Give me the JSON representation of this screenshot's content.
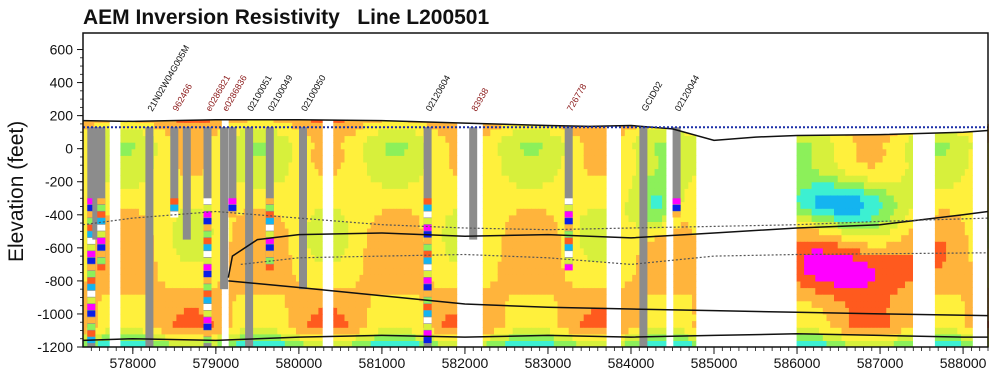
{
  "chart_data": {
    "type": "heatmap",
    "title": "AEM Inversion Resistivity   Line L200501",
    "xlabel": "",
    "ylabel": "Elevation (feet)",
    "xlim": [
      577400,
      588300
    ],
    "ylim": [
      -1200,
      700
    ],
    "x_ticks": [
      578000,
      579000,
      580000,
      581000,
      582000,
      583000,
      584000,
      585000,
      586000,
      587000,
      588000
    ],
    "x_tick_labels": [
      "578000",
      "579000",
      "580000",
      "581000",
      "582000",
      "583000",
      "584000",
      "585000",
      "586000",
      "587000",
      "588000"
    ],
    "y_ticks": [
      600,
      400,
      200,
      0,
      -200,
      -400,
      -600,
      -800,
      -1000,
      -1200
    ],
    "y_tick_labels": [
      "600",
      "400",
      "200",
      "0",
      "-200",
      "-400",
      "-600",
      "-800",
      "-1000",
      "-1200"
    ],
    "grid": false,
    "colormap": [
      "#0a1ee6",
      "#14b4f0",
      "#3cf0d2",
      "#8cf05a",
      "#d7f03c",
      "#fff03c",
      "#ffb43c",
      "#ff5a1e",
      "#ff00ff"
    ],
    "data_gaps_x": [
      [
        577700,
        577850
      ],
      [
        579050,
        579150
      ],
      [
        580300,
        580400
      ],
      [
        581900,
        582200
      ],
      [
        583700,
        583900
      ],
      [
        584400,
        584500
      ],
      [
        584800,
        586000
      ],
      [
        587400,
        587650
      ],
      [
        588100,
        588300
      ]
    ],
    "wells": [
      {
        "name": "",
        "x": 577500,
        "color": "#8b1a1a"
      },
      {
        "name": "",
        "x": 577560,
        "color": "#8b1a1a"
      },
      {
        "name": "",
        "x": 577620,
        "color": "#8b1a1a"
      },
      {
        "name": "21N02W04G005M",
        "x": 578200,
        "color": "#111111"
      },
      {
        "name": "962466",
        "x": 578500,
        "color": "#8b1a1a"
      },
      {
        "name": "",
        "x": 578650,
        "color": "#8b1a1a"
      },
      {
        "name": "e0286821",
        "x": 578900,
        "color": "#8b1a1a"
      },
      {
        "name": "e0286836",
        "x": 579100,
        "color": "#8b1a1a"
      },
      {
        "name": "",
        "x": 579200,
        "color": "#8b1a1a"
      },
      {
        "name": "02100051",
        "x": 579400,
        "color": "#111111"
      },
      {
        "name": "02100049",
        "x": 579650,
        "color": "#111111"
      },
      {
        "name": "02100050",
        "x": 580050,
        "color": "#111111"
      },
      {
        "name": "02120604",
        "x": 581550,
        "color": "#111111"
      },
      {
        "name": "83938",
        "x": 582100,
        "color": "#8b1a1a"
      },
      {
        "name": "726778",
        "x": 583250,
        "color": "#8b1a1a"
      },
      {
        "name": "GCID02",
        "x": 584150,
        "color": "#111111"
      },
      {
        "name": "02120044",
        "x": 584550,
        "color": "#111111"
      }
    ],
    "lines": [
      {
        "style": "solid",
        "points": [
          [
            577400,
            170
          ],
          [
            578000,
            165
          ],
          [
            579000,
            175
          ],
          [
            580000,
            175
          ],
          [
            581000,
            170
          ],
          [
            582000,
            155
          ],
          [
            583000,
            140
          ],
          [
            583500,
            135
          ],
          [
            584000,
            140
          ],
          [
            584500,
            120
          ],
          [
            585000,
            50
          ],
          [
            585500,
            70
          ],
          [
            586000,
            80
          ],
          [
            587000,
            85
          ],
          [
            588000,
            100
          ],
          [
            588300,
            110
          ]
        ]
      },
      {
        "style": "dotted",
        "points": [
          [
            577400,
            130
          ],
          [
            588300,
            130
          ]
        ]
      },
      {
        "style": "solid",
        "points": [
          [
            579150,
            -780
          ],
          [
            579200,
            -650
          ],
          [
            579500,
            -550
          ],
          [
            580000,
            -520
          ],
          [
            581000,
            -510
          ],
          [
            582000,
            -530
          ],
          [
            583000,
            -520
          ],
          [
            584000,
            -540
          ],
          [
            585000,
            -510
          ],
          [
            586000,
            -480
          ],
          [
            587000,
            -460
          ],
          [
            588000,
            -400
          ],
          [
            588300,
            -380
          ]
        ]
      },
      {
        "style": "solid",
        "points": [
          [
            579150,
            -800
          ],
          [
            580000,
            -840
          ],
          [
            581000,
            -890
          ],
          [
            582000,
            -940
          ],
          [
            583000,
            -960
          ],
          [
            584000,
            -970
          ],
          [
            585000,
            -980
          ],
          [
            586000,
            -990
          ],
          [
            587000,
            -1000
          ],
          [
            588300,
            -1010
          ]
        ]
      },
      {
        "style": "solid",
        "points": [
          [
            577400,
            -1160
          ],
          [
            578000,
            -1150
          ],
          [
            579000,
            -1160
          ],
          [
            580000,
            -1140
          ],
          [
            581000,
            -1130
          ],
          [
            582000,
            -1140
          ],
          [
            583000,
            -1130
          ],
          [
            584000,
            -1140
          ],
          [
            585000,
            -1130
          ],
          [
            586000,
            -1120
          ],
          [
            587000,
            -1130
          ],
          [
            588000,
            -1140
          ],
          [
            588300,
            -1140
          ]
        ]
      },
      {
        "style": "dotted",
        "points": [
          [
            577400,
            -460
          ],
          [
            578000,
            -420
          ],
          [
            579000,
            -380
          ],
          [
            580000,
            -420
          ],
          [
            581000,
            -460
          ],
          [
            582000,
            -480
          ],
          [
            583000,
            -490
          ],
          [
            584000,
            -480
          ],
          [
            585000,
            -470
          ],
          [
            586000,
            -460
          ],
          [
            587000,
            -440
          ],
          [
            588300,
            -420
          ]
        ]
      },
      {
        "style": "dotted",
        "points": [
          [
            579300,
            -700
          ],
          [
            580000,
            -660
          ],
          [
            581000,
            -650
          ],
          [
            582000,
            -640
          ],
          [
            583000,
            -660
          ],
          [
            584000,
            -700
          ],
          [
            585000,
            -650
          ],
          [
            586000,
            -640
          ],
          [
            588300,
            -630
          ]
        ]
      }
    ]
  }
}
